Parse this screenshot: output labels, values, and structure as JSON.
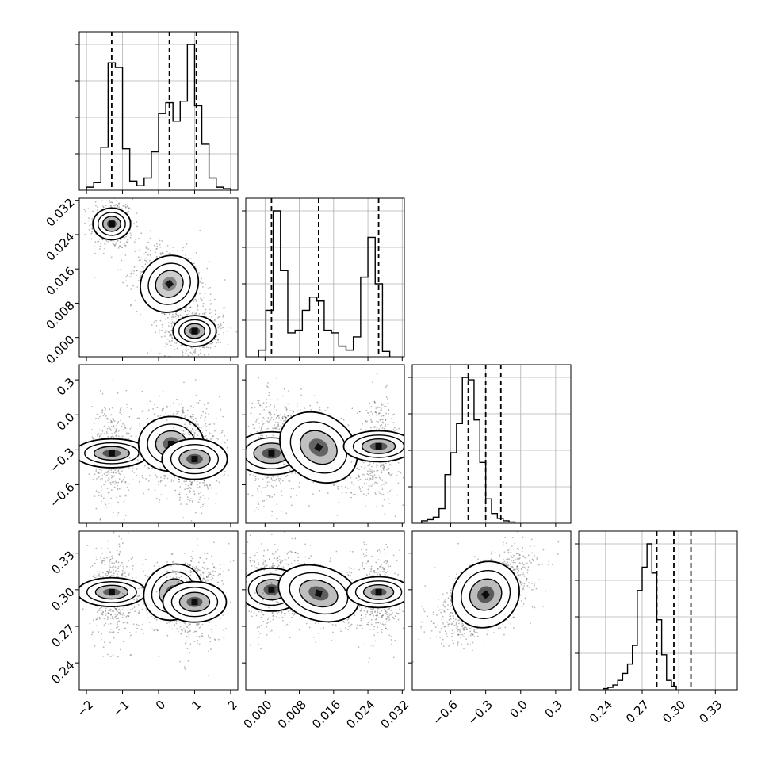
{
  "chart_data": {
    "type": "corner",
    "grid": true,
    "colors": {
      "samples": "#000000",
      "contour_line": "#000000",
      "background": "#ffffff"
    },
    "params": [
      {
        "index": 0,
        "range": [
          -2.2,
          2.2
        ],
        "ticks": [
          -2,
          -1,
          0,
          1,
          2
        ],
        "tick_labels": [
          "−2",
          "−1",
          "0",
          "1",
          "2"
        ],
        "quantiles": [
          -1.3,
          0.3,
          1.05
        ]
      },
      {
        "index": 1,
        "range": [
          -0.0045,
          0.0325
        ],
        "ticks": [
          0.0,
          0.008,
          0.016,
          0.024,
          0.032
        ],
        "tick_labels": [
          "0.000",
          "0.008",
          "0.016",
          "0.024",
          "0.032"
        ],
        "quantiles": [
          0.0015,
          0.0125,
          0.0265
        ]
      },
      {
        "index": 2,
        "range": [
          -0.93,
          0.43
        ],
        "ticks": [
          -0.6,
          -0.3,
          0.0,
          0.3
        ],
        "tick_labels": [
          "−0.6",
          "−0.3",
          "0.0",
          "0.3"
        ],
        "quantiles": [
          -0.45,
          -0.3,
          -0.17
        ]
      },
      {
        "index": 3,
        "range": [
          0.218,
          0.348
        ],
        "ticks": [
          0.24,
          0.27,
          0.3,
          0.33
        ],
        "tick_labels": [
          "0.24",
          "0.27",
          "0.30",
          "0.33"
        ],
        "quantiles": [
          0.282,
          0.296,
          0.31
        ]
      }
    ],
    "histograms": [
      {
        "param": 0,
        "bins_start": -2.0,
        "bin_width": 0.2,
        "counts": [
          2,
          5,
          28,
          83,
          80,
          27,
          6,
          3,
          8,
          25,
          50,
          57,
          45,
          58,
          95,
          55,
          30,
          8,
          2,
          1
        ]
      },
      {
        "param": 1,
        "bins_start": -0.0015,
        "bin_width": 0.0017,
        "counts": [
          5,
          35,
          110,
          65,
          18,
          20,
          35,
          45,
          42,
          20,
          18,
          8,
          5,
          15,
          60,
          90,
          55,
          4
        ]
      },
      {
        "param": 2,
        "bins_start": -0.85,
        "bin_width": 0.05,
        "counts": [
          2,
          3,
          5,
          12,
          40,
          58,
          82,
          120,
          118,
          85,
          50,
          20,
          8,
          4,
          2,
          1
        ]
      },
      {
        "param": 3,
        "bins_start": 0.238,
        "bin_width": 0.004,
        "counts": [
          1,
          2,
          4,
          8,
          14,
          22,
          38,
          85,
          105,
          125,
          100,
          60,
          30,
          8,
          3
        ]
      }
    ],
    "pairs": [
      {
        "x_param": 0,
        "y_param": 1,
        "clusters": [
          {
            "mean": [
              -1.3,
              0.0265
            ],
            "sd": [
              0.22,
              0.0022
            ],
            "corr": 0.0,
            "n": 400,
            "density": 0.75
          },
          {
            "mean": [
              0.3,
              0.0125
            ],
            "sd": [
              0.38,
              0.0035
            ],
            "corr": -0.35,
            "n": 600,
            "density": 0.12
          },
          {
            "mean": [
              1.0,
              0.0015
            ],
            "sd": [
              0.3,
              0.0018
            ],
            "corr": 0.0,
            "n": 550,
            "density": 0.7
          }
        ]
      },
      {
        "x_param": 0,
        "y_param": 2,
        "clusters": [
          {
            "mean": [
              -1.3,
              -0.33
            ],
            "sd": [
              0.2,
              0.16
            ],
            "corr": 0.0,
            "n": 450,
            "density": 0.6
          },
          {
            "mean": [
              0.35,
              -0.25
            ],
            "sd": [
              0.38,
              0.14
            ],
            "corr": 0.0,
            "n": 500,
            "density": 0.45
          },
          {
            "mean": [
              1.0,
              -0.38
            ],
            "sd": [
              0.28,
              0.14
            ],
            "corr": 0.0,
            "n": 450,
            "density": 0.6
          }
        ]
      },
      {
        "x_param": 1,
        "y_param": 2,
        "clusters": [
          {
            "mean": [
              0.0015,
              -0.33
            ],
            "sd": [
              0.0025,
              0.16
            ],
            "corr": 0.0,
            "n": 450,
            "density": 0.6
          },
          {
            "mean": [
              0.0125,
              -0.28
            ],
            "sd": [
              0.0048,
              0.14
            ],
            "corr": -0.55,
            "n": 550,
            "density": 0.45
          },
          {
            "mean": [
              0.0265,
              -0.27
            ],
            "sd": [
              0.0018,
              0.15
            ],
            "corr": 0.0,
            "n": 400,
            "density": 0.55
          }
        ]
      },
      {
        "x_param": 0,
        "y_param": 3,
        "clusters": [
          {
            "mean": [
              -1.3,
              0.298
            ],
            "sd": [
              0.2,
              0.014
            ],
            "corr": 0.0,
            "n": 450,
            "density": 0.5
          },
          {
            "mean": [
              0.4,
              0.298
            ],
            "sd": [
              0.42,
              0.011
            ],
            "corr": 0.35,
            "n": 500,
            "density": 0.5
          },
          {
            "mean": [
              1.0,
              0.29
            ],
            "sd": [
              0.28,
              0.013
            ],
            "corr": 0.0,
            "n": 450,
            "density": 0.55
          }
        ]
      },
      {
        "x_param": 1,
        "y_param": 3,
        "clusters": [
          {
            "mean": [
              0.0015,
              0.3
            ],
            "sd": [
              0.0025,
              0.013
            ],
            "corr": 0.0,
            "n": 450,
            "density": 0.55
          },
          {
            "mean": [
              0.0125,
              0.297
            ],
            "sd": [
              0.0048,
              0.011
            ],
            "corr": -0.3,
            "n": 500,
            "density": 0.5
          },
          {
            "mean": [
              0.0265,
              0.298
            ],
            "sd": [
              0.0018,
              0.013
            ],
            "corr": 0.0,
            "n": 400,
            "density": 0.55
          }
        ]
      },
      {
        "x_param": 2,
        "y_param": 3,
        "clusters": [
          {
            "mean": [
              -0.3,
              0.296
            ],
            "sd": [
              0.15,
              0.013
            ],
            "corr": 0.6,
            "n": 1300,
            "density": 0.55
          }
        ]
      }
    ]
  }
}
